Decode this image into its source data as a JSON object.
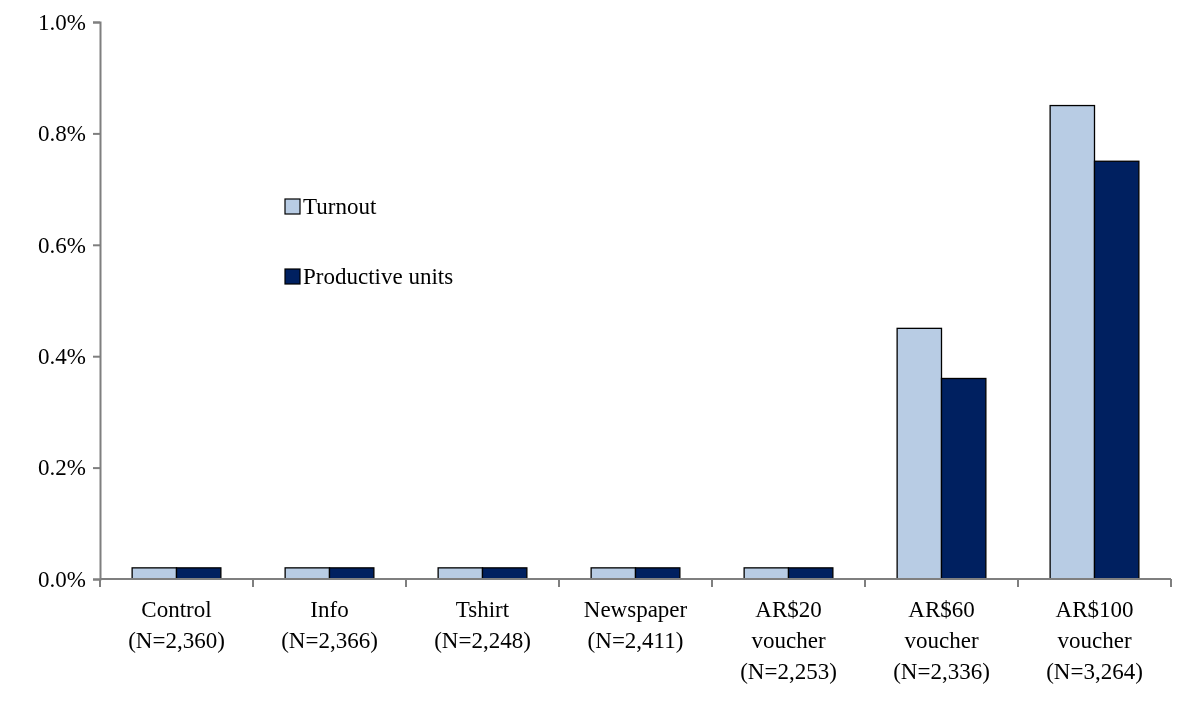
{
  "chart_data": {
    "type": "bar",
    "categories": [
      "Control\n(N=2,360)",
      "Info\n(N=2,366)",
      "Tshirt\n(N=2,248)",
      "Newspaper\n(N=2,411)",
      "AR$20\nvoucher\n(N=2,253)",
      "AR$60\nvoucher\n(N=2,336)",
      "AR$100\nvoucher\n(N=3,264)"
    ],
    "series": [
      {
        "name": "Turnout",
        "color": "#b8cce4",
        "values": [
          0.02,
          0.02,
          0.02,
          0.02,
          0.02,
          0.45,
          0.85
        ]
      },
      {
        "name": "Productive units",
        "color": "#002060",
        "values": [
          0.02,
          0.02,
          0.02,
          0.02,
          0.02,
          0.36,
          0.75
        ]
      }
    ],
    "ylim": [
      0,
      1.0
    ],
    "yticks": [
      {
        "value": 0,
        "label": "0.0%"
      },
      {
        "value": 0.2,
        "label": "0.2%"
      },
      {
        "value": 0.4,
        "label": "0.4%"
      },
      {
        "value": 0.6,
        "label": "0.6%"
      },
      {
        "value": 0.8,
        "label": "0.8%"
      },
      {
        "value": 1.0,
        "label": "1.0%"
      }
    ],
    "grid": false,
    "legend": "top left"
  }
}
